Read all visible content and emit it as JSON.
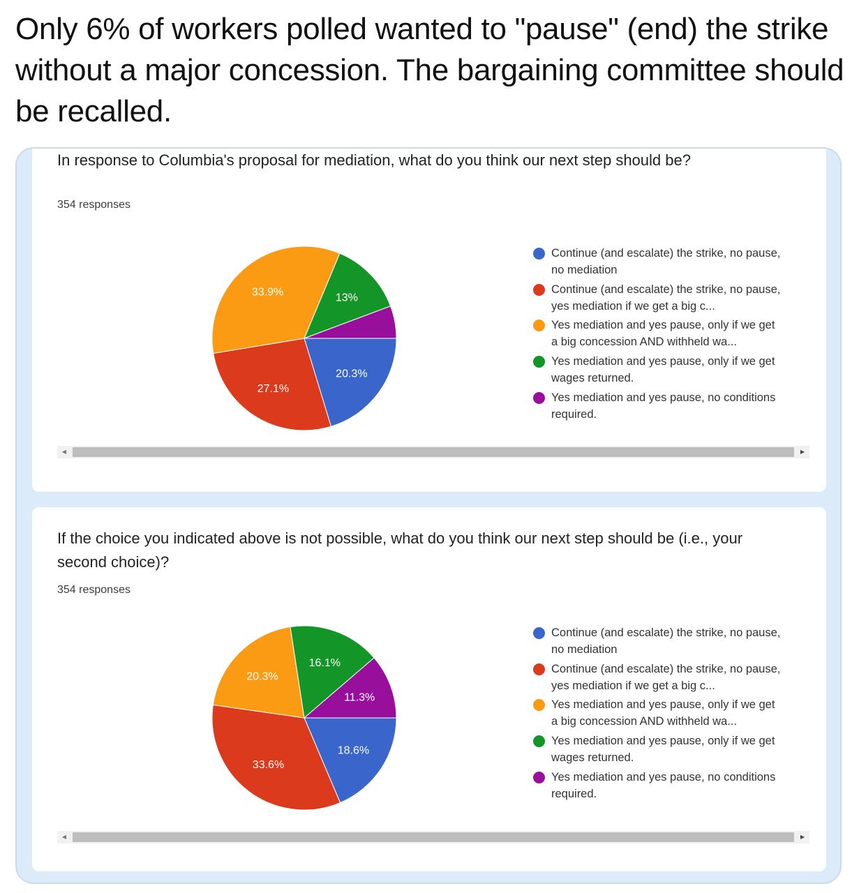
{
  "post": {
    "caption": "Only 6% of workers polled wanted to \"pause\" (end) the strike without a major concession. The bargaining committee should be recalled."
  },
  "scrollbar": {
    "left_arrow": "◀",
    "right_arrow": "▶"
  },
  "colors": {
    "blue": "#3a66cc",
    "red": "#dc3a1c",
    "orange": "#fb9b14",
    "green": "#139627",
    "purple": "#980f9b"
  },
  "chart_data": [
    {
      "type": "pie",
      "title": "In response to Columbia's proposal for mediation, what do you think our next step should be?",
      "responses": "354 responses",
      "slices": [
        {
          "label": "Continue (and escalate) the strike, no pause, no mediation",
          "value": 20.3,
          "display": "20.3%",
          "color": "#3a66cc"
        },
        {
          "label": "Continue (and escalate) the strike, no pause, yes mediation if we get a big c...",
          "value": 27.1,
          "display": "27.1%",
          "color": "#dc3a1c"
        },
        {
          "label": "Yes mediation and yes pause, only if we get a big concession AND withheld wa...",
          "value": 33.9,
          "display": "33.9%",
          "color": "#fb9b14"
        },
        {
          "label": "Yes mediation and yes pause, only if we get wages returned.",
          "value": 13.0,
          "display": "13%",
          "color": "#139627"
        },
        {
          "label": "Yes mediation and yes pause, no conditions required.",
          "value": 5.7,
          "display": "",
          "color": "#980f9b"
        }
      ],
      "legend_position": "right"
    },
    {
      "type": "pie",
      "title": "If the choice you indicated above is not possible, what do you think our next step should be (i.e., your second choice)?",
      "responses": "354 responses",
      "slices": [
        {
          "label": "Continue (and escalate) the strike, no pause, no mediation",
          "value": 18.6,
          "display": "18.6%",
          "color": "#3a66cc"
        },
        {
          "label": "Continue (and escalate) the strike, no pause, yes mediation if we get a big c...",
          "value": 33.6,
          "display": "33.6%",
          "color": "#dc3a1c"
        },
        {
          "label": "Yes mediation and yes pause, only if we get a big concession AND withheld wa...",
          "value": 20.3,
          "display": "20.3%",
          "color": "#fb9b14"
        },
        {
          "label": "Yes mediation and yes pause, only if we get wages returned.",
          "value": 16.1,
          "display": "16.1%",
          "color": "#139627"
        },
        {
          "label": "Yes mediation and yes pause, no conditions required.",
          "value": 11.3,
          "display": "11.3%",
          "color": "#980f9b"
        }
      ],
      "legend_position": "right"
    }
  ]
}
